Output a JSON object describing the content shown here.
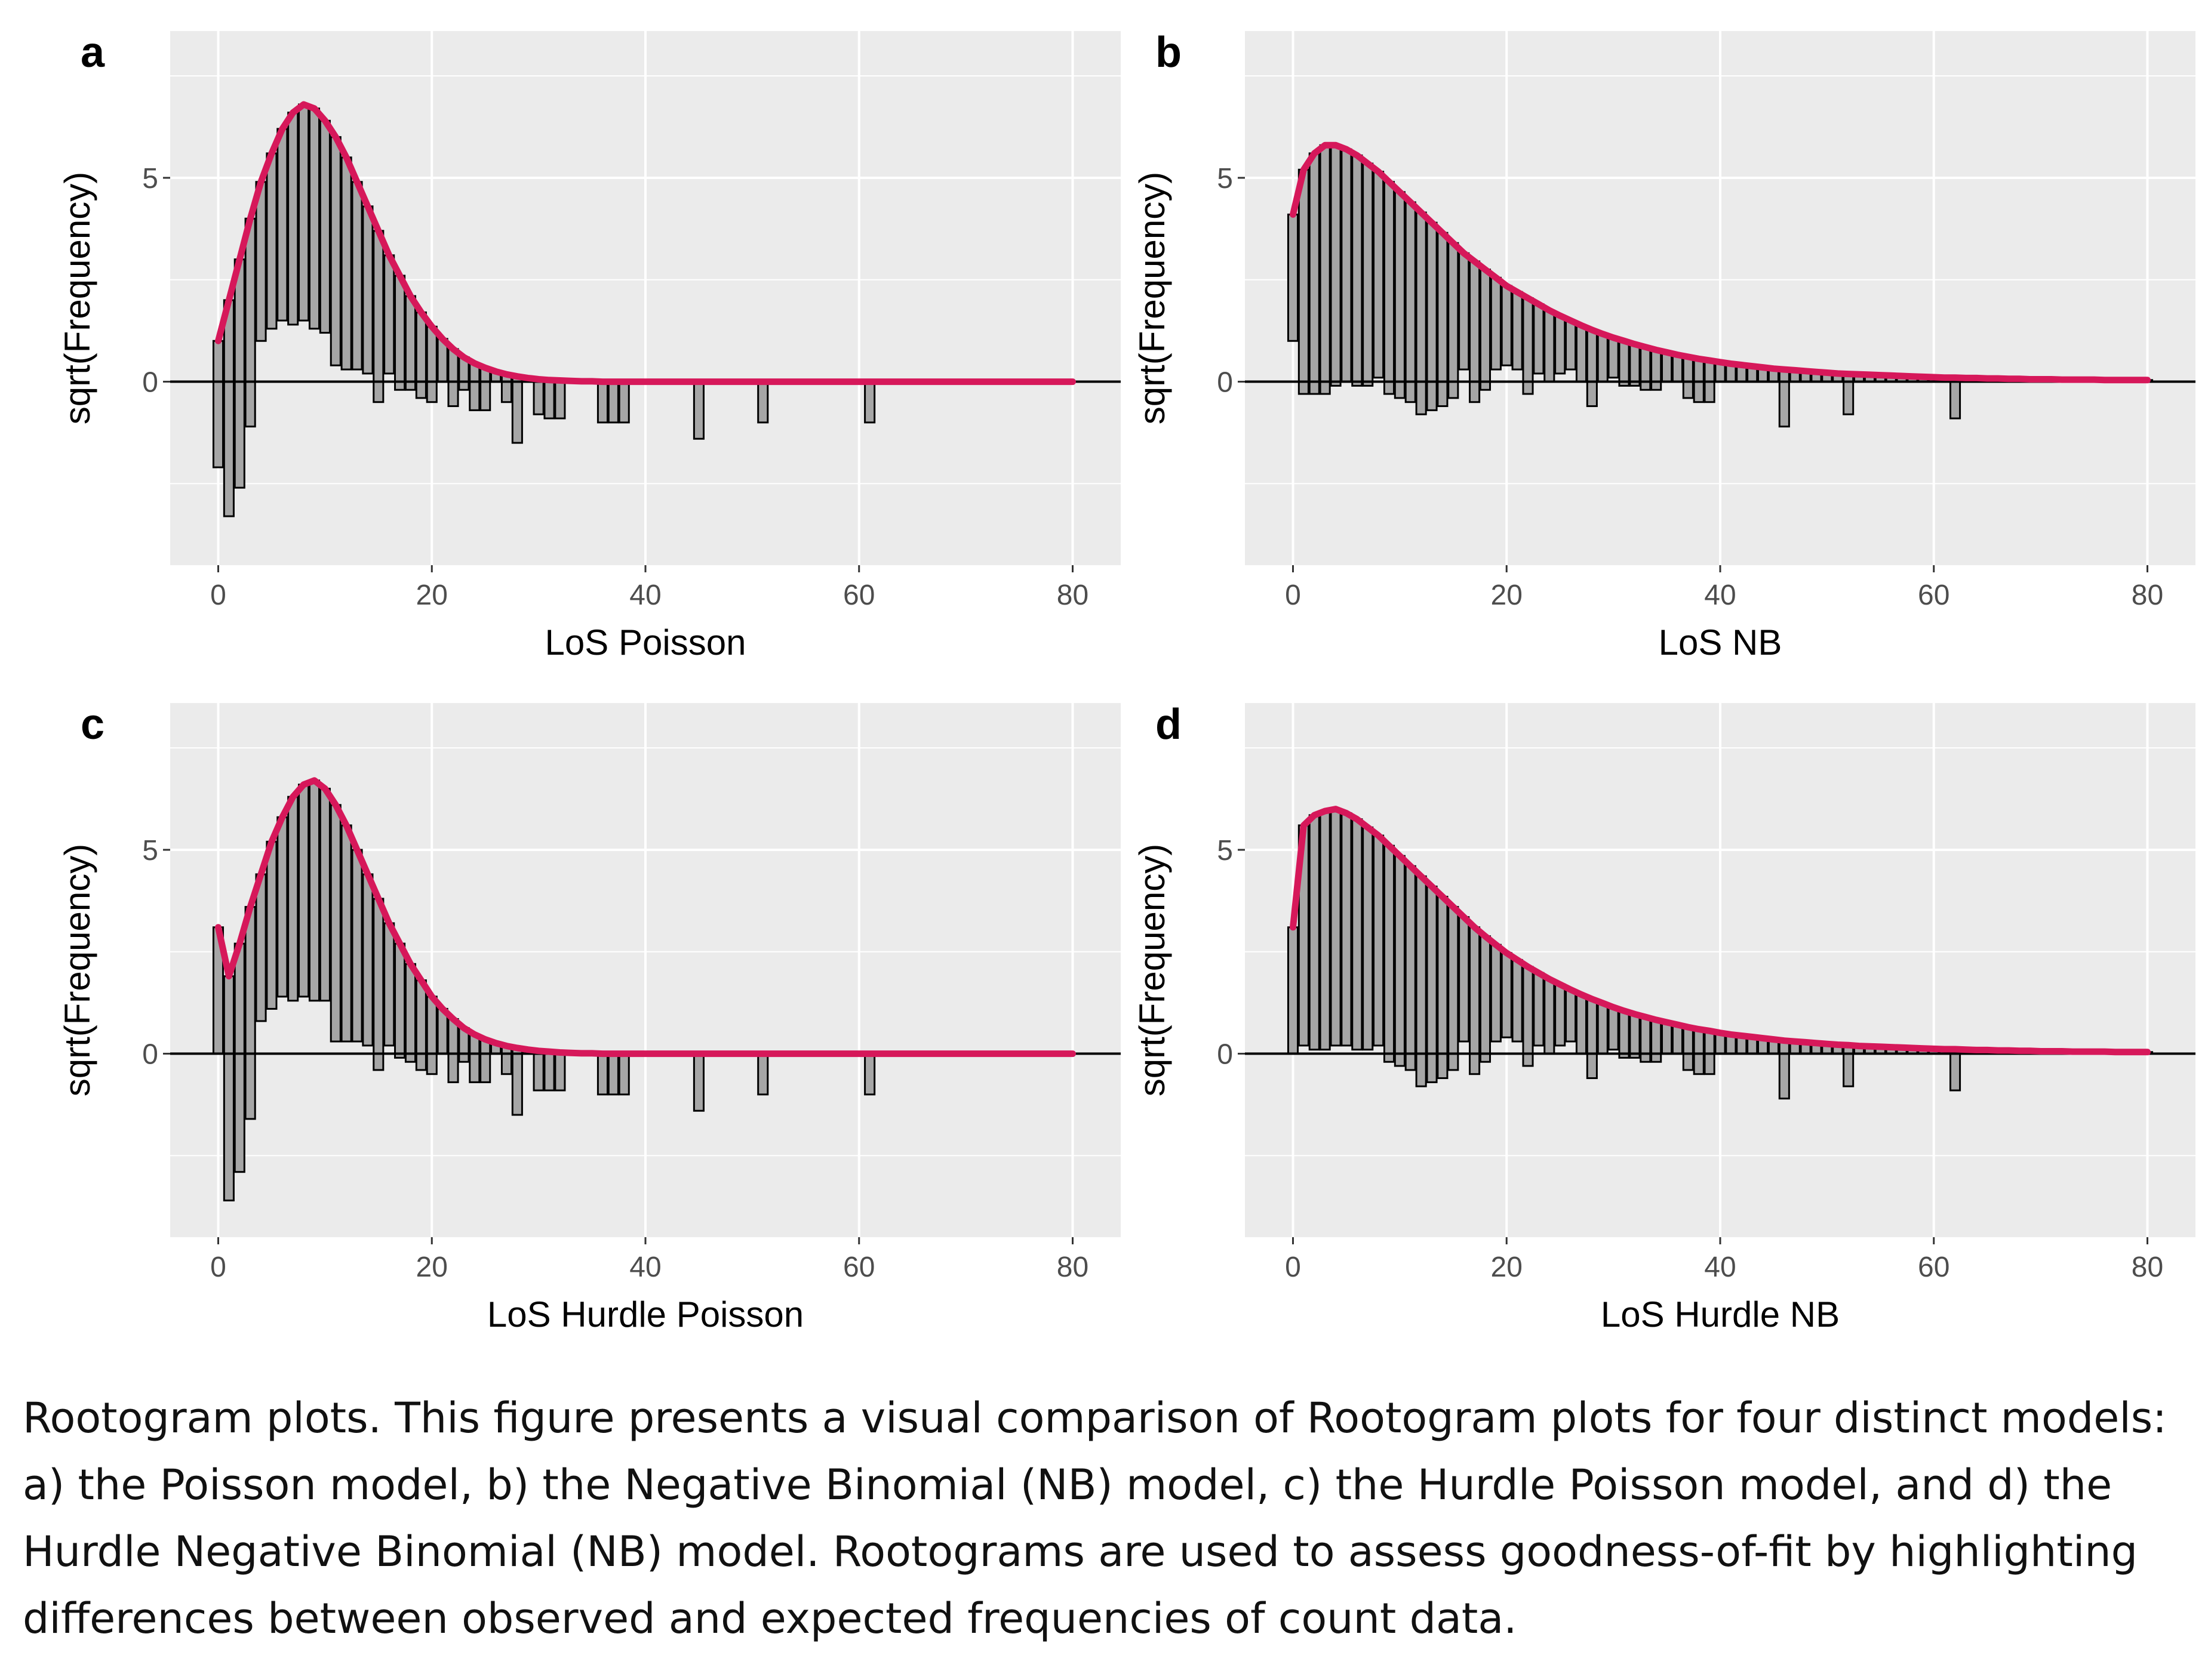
{
  "caption": "Rootogram plots. This figure presents a visual comparison of Rootogram plots for four distinct models: a) the Poisson model, b) the Negative Binomial (NB) model, c) the Hurdle Poisson model, and d) the Hurdle Negative Binomial (NB) model. Rootograms are used to assess goodness-of-fit by highlighting differences between observed and expected frequencies of count data.",
  "colors": {
    "panel_bg": "#ebebeb",
    "grid": "#ffffff",
    "bar_fill": "#a6a6a6",
    "bar_stroke": "#000000",
    "curve": "#d6185a",
    "zero_line": "#000000"
  },
  "chart_data": [
    {
      "panel": "a",
      "type": "bar",
      "variant": "hanging rootogram with expected curve",
      "xlabel": "LoS Poisson",
      "ylabel": "sqrt(Frequency)",
      "xlim": [
        -4.5,
        84.5
      ],
      "ylim": [
        -4.5,
        8.6
      ],
      "xticks": [
        0,
        20,
        40,
        60,
        80
      ],
      "yticks": [
        0,
        5
      ],
      "grid": true,
      "expected_sqrt": [
        1.0,
        2.0,
        3.0,
        4.0,
        4.9,
        5.6,
        6.2,
        6.6,
        6.8,
        6.7,
        6.4,
        6.0,
        5.5,
        4.9,
        4.3,
        3.7,
        3.1,
        2.6,
        2.1,
        1.7,
        1.35,
        1.05,
        0.8,
        0.6,
        0.45,
        0.34,
        0.25,
        0.18,
        0.13,
        0.09,
        0.06,
        0.04,
        0.03,
        0.02,
        0.01,
        0.01,
        0,
        0,
        0,
        0,
        0,
        0,
        0,
        0,
        0,
        0,
        0,
        0,
        0,
        0,
        0,
        0,
        0,
        0,
        0,
        0,
        0,
        0,
        0,
        0,
        0,
        0,
        0,
        0,
        0,
        0,
        0,
        0,
        0,
        0,
        0,
        0,
        0,
        0,
        0,
        0,
        0,
        0,
        0,
        0,
        0
      ],
      "bar_bottoms": [
        -2.1,
        -3.3,
        -2.6,
        -1.1,
        1.0,
        1.3,
        1.5,
        1.4,
        1.5,
        1.3,
        1.2,
        0.4,
        0.3,
        0.3,
        0.2,
        -0.5,
        0.2,
        -0.2,
        -0.2,
        -0.4,
        -0.5,
        0.0,
        -0.6,
        -0.2,
        -0.7,
        -0.7,
        0.0,
        -0.5,
        -1.5,
        0.0,
        -0.8,
        -0.9,
        -0.9,
        0,
        0,
        0,
        -1.0,
        -1.0,
        -1.0,
        0,
        0,
        0,
        0,
        0,
        0,
        -1.4,
        0,
        0,
        0,
        0,
        0,
        -1.0,
        0,
        0,
        0,
        0,
        0,
        0,
        0,
        0,
        0,
        -1.0,
        0,
        0,
        0,
        0,
        0,
        0,
        0,
        0,
        0,
        0,
        0,
        0,
        0,
        0,
        0,
        0,
        0,
        0,
        0
      ]
    },
    {
      "panel": "b",
      "type": "bar",
      "variant": "hanging rootogram with expected curve",
      "xlabel": "LoS NB",
      "ylabel": "sqrt(Frequency)",
      "xlim": [
        -4.5,
        84.5
      ],
      "ylim": [
        -4.5,
        8.6
      ],
      "xticks": [
        0,
        20,
        40,
        60,
        80
      ],
      "yticks": [
        0,
        5
      ],
      "grid": true,
      "expected_sqrt": [
        4.1,
        5.2,
        5.6,
        5.8,
        5.8,
        5.7,
        5.55,
        5.35,
        5.15,
        4.9,
        4.65,
        4.4,
        4.15,
        3.9,
        3.65,
        3.4,
        3.15,
        2.95,
        2.75,
        2.55,
        2.35,
        2.2,
        2.05,
        1.9,
        1.75,
        1.62,
        1.5,
        1.38,
        1.27,
        1.17,
        1.08,
        1.0,
        0.92,
        0.85,
        0.78,
        0.72,
        0.66,
        0.61,
        0.56,
        0.52,
        0.48,
        0.44,
        0.41,
        0.38,
        0.35,
        0.32,
        0.3,
        0.28,
        0.26,
        0.24,
        0.22,
        0.2,
        0.19,
        0.18,
        0.17,
        0.16,
        0.15,
        0.14,
        0.13,
        0.12,
        0.11,
        0.1,
        0.1,
        0.09,
        0.09,
        0.08,
        0.08,
        0.07,
        0.07,
        0.06,
        0.06,
        0.06,
        0.05,
        0.05,
        0.05,
        0.05,
        0.04,
        0.04,
        0.04,
        0.04,
        0.04
      ],
      "bar_bottoms": [
        1.0,
        -0.3,
        -0.3,
        -0.3,
        -0.1,
        0.0,
        -0.1,
        -0.1,
        0.1,
        -0.3,
        -0.4,
        -0.5,
        -0.8,
        -0.7,
        -0.6,
        -0.4,
        0.3,
        -0.5,
        -0.2,
        0.3,
        0.4,
        0.3,
        -0.3,
        0.2,
        0.0,
        0.2,
        0.3,
        0.0,
        -0.6,
        0.0,
        0.1,
        -0.1,
        -0.1,
        -0.2,
        -0.2,
        0,
        0,
        -0.4,
        -0.5,
        -0.5,
        0,
        0,
        0,
        0,
        0,
        0,
        -1.1,
        0,
        0,
        0,
        0,
        0,
        -0.8,
        0,
        0,
        0,
        0,
        0,
        0,
        0,
        0,
        0,
        -0.9,
        0,
        0,
        0,
        0,
        0,
        0,
        0,
        0,
        0,
        0,
        0,
        0,
        0,
        0,
        0,
        0,
        0,
        0
      ]
    },
    {
      "panel": "c",
      "type": "bar",
      "variant": "hanging rootogram with expected curve",
      "xlabel": "LoS Hurdle Poisson",
      "ylabel": "sqrt(Frequency)",
      "xlim": [
        -4.5,
        84.5
      ],
      "ylim": [
        -4.5,
        8.6
      ],
      "xticks": [
        0,
        20,
        40,
        60,
        80
      ],
      "yticks": [
        0,
        5
      ],
      "grid": true,
      "expected_sqrt": [
        3.1,
        1.9,
        2.7,
        3.6,
        4.4,
        5.2,
        5.8,
        6.3,
        6.6,
        6.7,
        6.5,
        6.1,
        5.6,
        5.0,
        4.4,
        3.8,
        3.2,
        2.7,
        2.2,
        1.8,
        1.4,
        1.1,
        0.85,
        0.63,
        0.47,
        0.35,
        0.26,
        0.19,
        0.14,
        0.1,
        0.07,
        0.05,
        0.03,
        0.02,
        0.01,
        0.01,
        0,
        0,
        0,
        0,
        0,
        0,
        0,
        0,
        0,
        0,
        0,
        0,
        0,
        0,
        0,
        0,
        0,
        0,
        0,
        0,
        0,
        0,
        0,
        0,
        0,
        0,
        0,
        0,
        0,
        0,
        0,
        0,
        0,
        0,
        0,
        0,
        0,
        0,
        0,
        0,
        0,
        0,
        0,
        0,
        0
      ],
      "bar_bottoms": [
        0.0,
        -3.6,
        -2.9,
        -1.6,
        0.8,
        1.1,
        1.4,
        1.3,
        1.4,
        1.3,
        1.3,
        0.3,
        0.3,
        0.3,
        0.2,
        -0.4,
        0.2,
        -0.1,
        -0.2,
        -0.4,
        -0.5,
        0.0,
        -0.7,
        -0.2,
        -0.7,
        -0.7,
        0.0,
        -0.5,
        -1.5,
        0.0,
        -0.9,
        -0.9,
        -0.9,
        0,
        0,
        0,
        -1.0,
        -1.0,
        -1.0,
        0,
        0,
        0,
        0,
        0,
        0,
        -1.4,
        0,
        0,
        0,
        0,
        0,
        -1.0,
        0,
        0,
        0,
        0,
        0,
        0,
        0,
        0,
        0,
        -1.0,
        0,
        0,
        0,
        0,
        0,
        0,
        0,
        0,
        0,
        0,
        0,
        0,
        0,
        0,
        0,
        0,
        0,
        0,
        0
      ]
    },
    {
      "panel": "d",
      "type": "bar",
      "variant": "hanging rootogram with expected curve",
      "xlabel": "LoS Hurdle NB",
      "ylabel": "sqrt(Frequency)",
      "xlim": [
        -4.5,
        84.5
      ],
      "ylim": [
        -4.5,
        8.6
      ],
      "xticks": [
        0,
        20,
        40,
        60,
        80
      ],
      "yticks": [
        0,
        5
      ],
      "grid": true,
      "expected_sqrt": [
        3.1,
        5.6,
        5.85,
        5.95,
        6.0,
        5.9,
        5.75,
        5.55,
        5.35,
        5.1,
        4.85,
        4.6,
        4.35,
        4.1,
        3.85,
        3.6,
        3.35,
        3.1,
        2.88,
        2.67,
        2.47,
        2.3,
        2.13,
        1.98,
        1.83,
        1.7,
        1.57,
        1.45,
        1.34,
        1.24,
        1.14,
        1.05,
        0.97,
        0.9,
        0.83,
        0.77,
        0.71,
        0.65,
        0.6,
        0.56,
        0.51,
        0.47,
        0.44,
        0.41,
        0.38,
        0.35,
        0.32,
        0.3,
        0.28,
        0.26,
        0.24,
        0.22,
        0.21,
        0.19,
        0.18,
        0.17,
        0.16,
        0.15,
        0.14,
        0.13,
        0.12,
        0.11,
        0.11,
        0.1,
        0.09,
        0.09,
        0.08,
        0.08,
        0.07,
        0.07,
        0.06,
        0.06,
        0.06,
        0.05,
        0.05,
        0.05,
        0.05,
        0.04,
        0.04,
        0.04,
        0.04
      ],
      "bar_bottoms": [
        0.0,
        0.2,
        0.1,
        0.1,
        0.2,
        0.2,
        0.1,
        0.1,
        0.2,
        -0.2,
        -0.3,
        -0.4,
        -0.8,
        -0.7,
        -0.6,
        -0.4,
        0.3,
        -0.5,
        -0.2,
        0.3,
        0.4,
        0.3,
        -0.3,
        0.2,
        0.0,
        0.2,
        0.3,
        0.0,
        -0.6,
        0.0,
        0.1,
        -0.1,
        -0.1,
        -0.2,
        -0.2,
        0,
        0,
        -0.4,
        -0.5,
        -0.5,
        0,
        0,
        0,
        0,
        0,
        0,
        -1.1,
        0,
        0,
        0,
        0,
        0,
        -0.8,
        0,
        0,
        0,
        0,
        0,
        0,
        0,
        0,
        0,
        -0.9,
        0,
        0,
        0,
        0,
        0,
        0,
        0,
        0,
        0,
        0,
        0,
        0,
        0,
        0,
        0,
        0,
        0,
        0
      ]
    }
  ]
}
